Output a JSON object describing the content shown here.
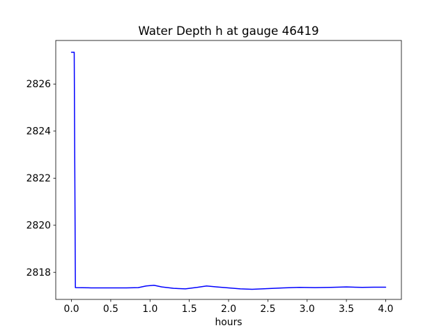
{
  "figure": {
    "background": "#ffffff",
    "text_color": "#000000"
  },
  "chart_data": {
    "type": "line",
    "title": "Water Depth h at gauge 46419",
    "xlabel": "hours",
    "ylabel": "",
    "xlim": [
      -0.2,
      4.2
    ],
    "ylim": [
      2816.85,
      2827.85
    ],
    "xtick_labels": [
      "0.0",
      "0.5",
      "1.0",
      "1.5",
      "2.0",
      "2.5",
      "3.0",
      "3.5",
      "4.0"
    ],
    "ytick_labels": [
      "2818",
      "2820",
      "2822",
      "2824",
      "2826"
    ],
    "grid": false,
    "legend": "none",
    "line_color": "#0000ff",
    "axis_color": "#000000",
    "series": [
      {
        "name": "water depth h",
        "x": [
          0.0,
          0.035,
          0.05,
          0.25,
          0.5,
          0.7,
          0.85,
          0.95,
          1.05,
          1.15,
          1.3,
          1.45,
          1.6,
          1.72,
          1.85,
          2.0,
          2.15,
          2.3,
          2.5,
          2.7,
          2.9,
          3.1,
          3.3,
          3.5,
          3.7,
          3.85,
          4.0
        ],
        "y": [
          2827.35,
          2827.35,
          2817.35,
          2817.34,
          2817.34,
          2817.34,
          2817.35,
          2817.42,
          2817.45,
          2817.38,
          2817.32,
          2817.3,
          2817.36,
          2817.42,
          2817.38,
          2817.34,
          2817.3,
          2817.28,
          2817.31,
          2817.34,
          2817.36,
          2817.35,
          2817.36,
          2817.38,
          2817.36,
          2817.37,
          2817.37
        ]
      }
    ]
  }
}
